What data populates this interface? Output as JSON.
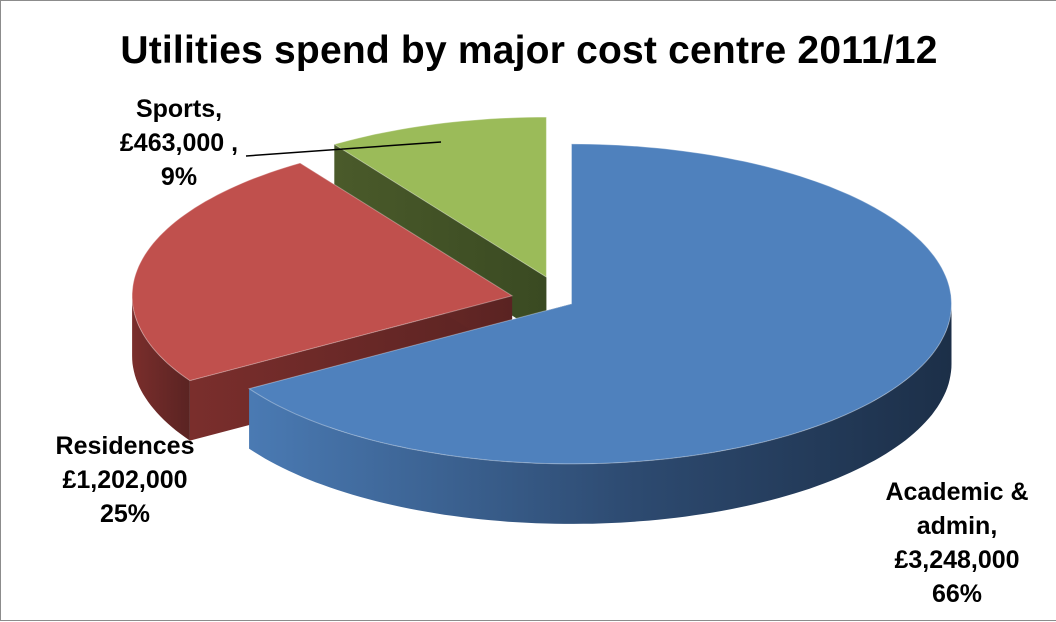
{
  "chart_data": {
    "type": "pie",
    "title": "Utilities spend by major cost centre 2011/12",
    "slices": [
      {
        "label": "Academic & admin,",
        "label_lines": [
          "Academic &",
          "admin,"
        ],
        "amount_text": "£3,248,000",
        "percent_text": "66%",
        "value": 3248000,
        "percent": 66,
        "color": "#4f81bd"
      },
      {
        "label": "Residences",
        "label_lines": [
          "Residences"
        ],
        "amount_text": "£1,202,000",
        "percent_text": "25%",
        "value": 1202000,
        "percent": 25,
        "color": "#c0504d"
      },
      {
        "label": "Sports,",
        "label_lines": [
          "Sports,"
        ],
        "amount_text": "£463,000 ,",
        "percent_text": "9%",
        "value": 463000,
        "percent": 9,
        "color": "#9bbb59"
      }
    ],
    "exploded": true,
    "style": "3d"
  }
}
